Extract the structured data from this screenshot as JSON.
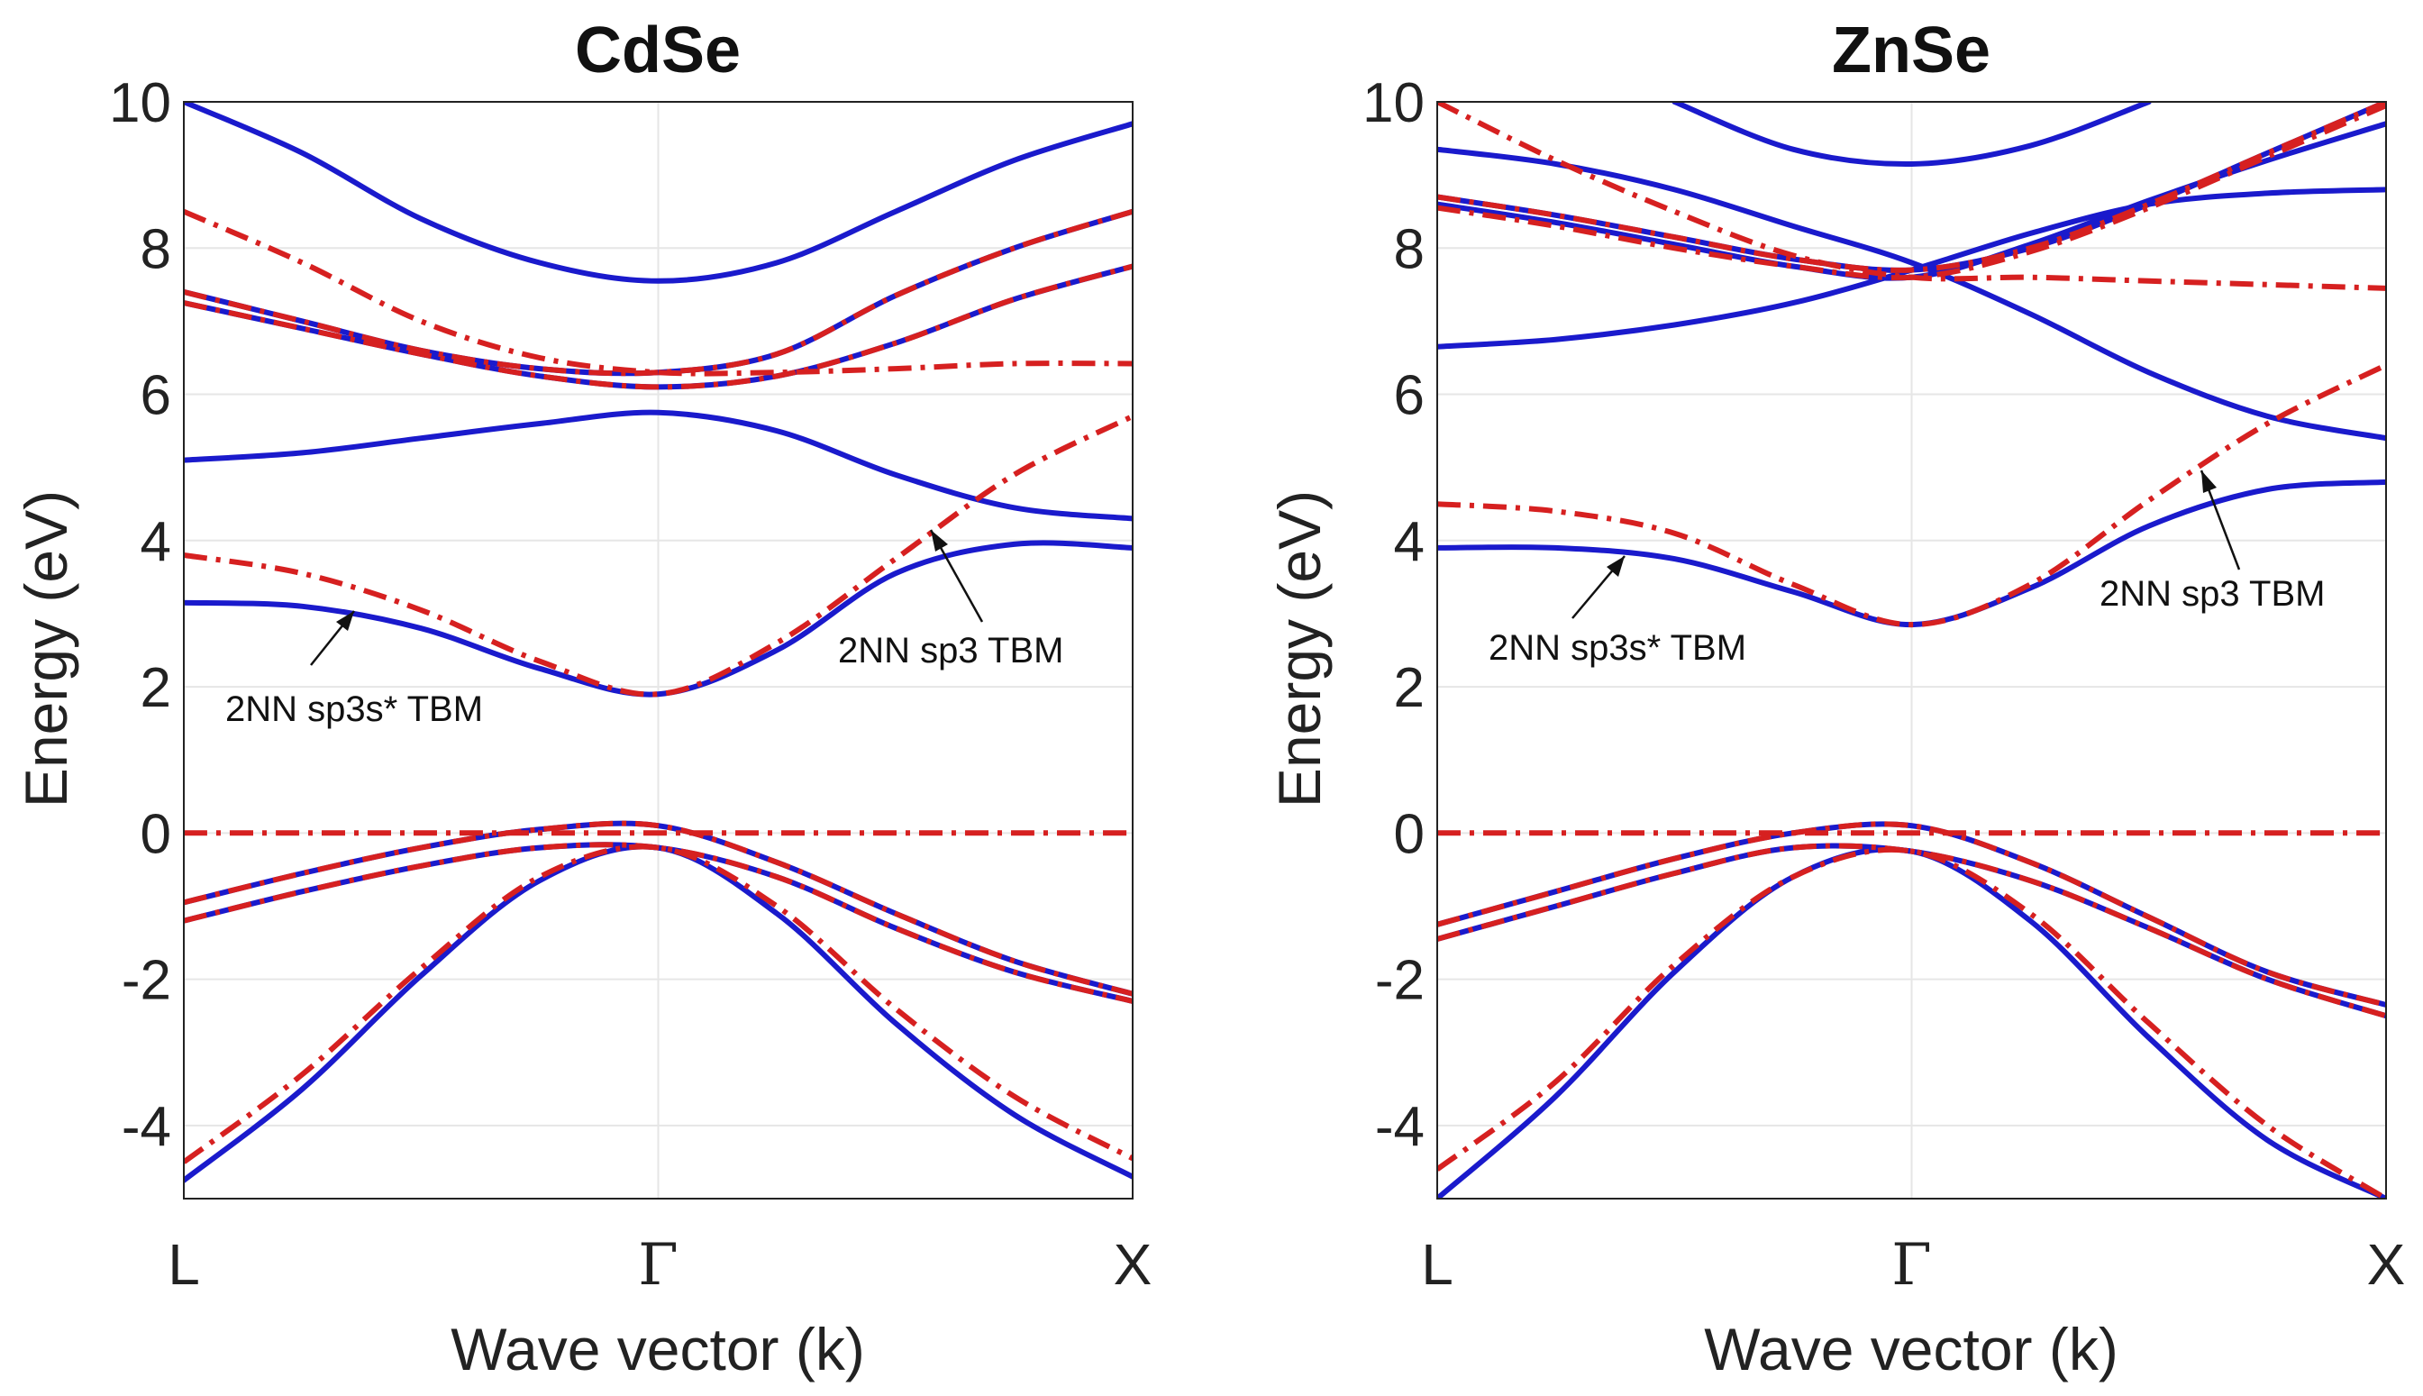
{
  "chart_data": [
    {
      "type": "line",
      "title": "CdSe",
      "xlabel": "Wave vector (k)",
      "ylabel": "Energy (eV)",
      "ylim": [
        -5,
        10
      ],
      "yticks": [
        "10",
        "8",
        "6",
        "4",
        "2",
        "0",
        "-2",
        "-4"
      ],
      "x_ticks": [
        "L",
        "Γ",
        "X"
      ],
      "grid": true,
      "k": [
        0,
        0.25,
        0.5,
        0.75,
        1.0,
        1.25,
        1.5,
        1.75,
        2.0
      ],
      "series": [
        {
          "name": "2NN sp3s* TBM",
          "style": "solid",
          "color": "#1a1acc",
          "bands": [
            [
              10.0,
              9.3,
              8.4,
              7.8,
              7.55,
              7.8,
              8.5,
              9.2,
              9.7
            ],
            [
              7.4,
              7.0,
              6.6,
              6.35,
              6.3,
              6.55,
              7.35,
              8.0,
              8.5
            ],
            [
              7.25,
              6.9,
              6.55,
              6.25,
              6.1,
              6.25,
              6.7,
              7.3,
              7.75
            ],
            [
              5.1,
              5.2,
              5.4,
              5.6,
              5.75,
              5.5,
              4.9,
              4.45,
              4.3
            ],
            [
              3.15,
              3.1,
              2.8,
              2.25,
              1.9,
              2.5,
              3.55,
              3.95,
              3.9
            ],
            [
              -0.95,
              -0.55,
              -0.2,
              0.05,
              0.1,
              -0.4,
              -1.1,
              -1.75,
              -2.2
            ],
            [
              -1.2,
              -0.8,
              -0.45,
              -0.2,
              -0.2,
              -0.6,
              -1.3,
              -1.9,
              -2.3
            ],
            [
              -4.75,
              -3.5,
              -1.95,
              -0.65,
              -0.2,
              -1.1,
              -2.6,
              -3.85,
              -4.7
            ]
          ]
        },
        {
          "name": "2NN sp3 TBM",
          "style": "dashdot",
          "color": "#d62020",
          "bands": [
            [
              8.5,
              7.8,
              7.0,
              6.5,
              6.3,
              6.3,
              6.35,
              6.42,
              6.42
            ],
            [
              7.4,
              7.0,
              6.6,
              6.35,
              6.3,
              6.55,
              7.35,
              8.0,
              8.5
            ],
            [
              7.25,
              6.9,
              6.55,
              6.25,
              6.1,
              6.25,
              6.7,
              7.3,
              7.75
            ],
            [
              3.8,
              3.55,
              3.05,
              2.35,
              1.9,
              2.6,
              3.75,
              4.9,
              5.7
            ],
            [
              0.0,
              0.0,
              0.0,
              0.0,
              0.0,
              0.0,
              0.0,
              0.0,
              0.0
            ],
            [
              -0.95,
              -0.55,
              -0.2,
              0.05,
              0.1,
              -0.4,
              -1.1,
              -1.75,
              -2.2
            ],
            [
              -1.2,
              -0.8,
              -0.45,
              -0.2,
              -0.2,
              -0.6,
              -1.3,
              -1.9,
              -2.3
            ],
            [
              -4.5,
              -3.3,
              -1.85,
              -0.6,
              -0.2,
              -1.0,
              -2.4,
              -3.6,
              -4.45
            ]
          ]
        }
      ],
      "annotations": [
        {
          "text": "2NN sp3s* TBM",
          "target": [
            0.375,
            3.1
          ]
        },
        {
          "text": "2NN sp3 TBM",
          "target": [
            1.55,
            4.2
          ]
        }
      ]
    },
    {
      "type": "line",
      "title": "ZnSe",
      "xlabel": "Wave vector (k)",
      "ylabel": "Energy (eV)",
      "ylim": [
        -5,
        10
      ],
      "yticks": [
        "10",
        "8",
        "6",
        "4",
        "2",
        "0",
        "-2",
        "-4"
      ],
      "x_ticks": [
        "L",
        "Γ",
        "X"
      ],
      "grid": true,
      "k": [
        0,
        0.25,
        0.5,
        0.75,
        1.0,
        1.25,
        1.5,
        1.75,
        2.0
      ],
      "series": [
        {
          "name": "2NN sp3s* TBM",
          "style": "solid",
          "color": "#1a1acc",
          "bands": [
            [
              null,
              null,
              10.0,
              9.35,
              9.15,
              9.4,
              10.0,
              null,
              null
            ],
            [
              9.35,
              9.15,
              8.8,
              8.3,
              7.8,
              7.1,
              6.3,
              5.7,
              5.4
            ],
            [
              8.7,
              8.45,
              8.15,
              7.85,
              7.7,
              8.0,
              8.6,
              9.3,
              10.0
            ],
            [
              8.6,
              8.35,
              8.05,
              7.75,
              7.6,
              8.05,
              8.65,
              9.2,
              9.7
            ],
            [
              6.65,
              6.75,
              6.95,
              7.25,
              7.7,
              8.2,
              8.6,
              8.75,
              8.8
            ],
            [
              3.9,
              3.9,
              3.75,
              3.3,
              2.85,
              3.35,
              4.2,
              4.7,
              4.8
            ],
            [
              -1.25,
              -0.8,
              -0.35,
              0.0,
              0.1,
              -0.4,
              -1.15,
              -1.9,
              -2.35
            ],
            [
              -1.45,
              -1.0,
              -0.55,
              -0.2,
              -0.25,
              -0.65,
              -1.3,
              -2.0,
              -2.5
            ],
            [
              -5.0,
              -3.6,
              -1.9,
              -0.6,
              -0.25,
              -1.2,
              -2.8,
              -4.2,
              -5.0
            ]
          ]
        },
        {
          "name": "2NN sp3 TBM",
          "style": "dashdot",
          "color": "#d62020",
          "bands": [
            [
              10.0,
              9.2,
              8.5,
              7.9,
              7.6,
              7.6,
              7.55,
              7.5,
              7.45
            ],
            [
              8.7,
              8.45,
              8.15,
              7.85,
              7.7,
              8.0,
              8.6,
              9.3,
              10.0
            ],
            [
              8.55,
              8.3,
              8.0,
              7.75,
              7.6,
              7.95,
              8.55,
              9.25,
              9.95
            ],
            [
              4.5,
              4.4,
              4.1,
              3.4,
              2.85,
              3.4,
              4.55,
              5.6,
              6.4
            ],
            [
              0.0,
              0.0,
              0.0,
              0.0,
              0.0,
              0.0,
              0.0,
              0.0,
              0.0
            ],
            [
              -1.25,
              -0.8,
              -0.35,
              0.0,
              0.1,
              -0.4,
              -1.15,
              -1.9,
              -2.35
            ],
            [
              -1.45,
              -1.0,
              -0.55,
              -0.2,
              -0.25,
              -0.65,
              -1.3,
              -2.0,
              -2.5
            ],
            [
              -4.6,
              -3.4,
              -1.8,
              -0.6,
              -0.25,
              -1.1,
              -2.6,
              -4.0,
              -5.0
            ]
          ]
        }
      ],
      "annotations": [
        {
          "text": "2NN sp3s* TBM",
          "target": [
            0.4,
            3.9
          ]
        },
        {
          "text": "2NN sp3 TBM",
          "target": [
            1.6,
            5.0
          ]
        }
      ]
    }
  ]
}
